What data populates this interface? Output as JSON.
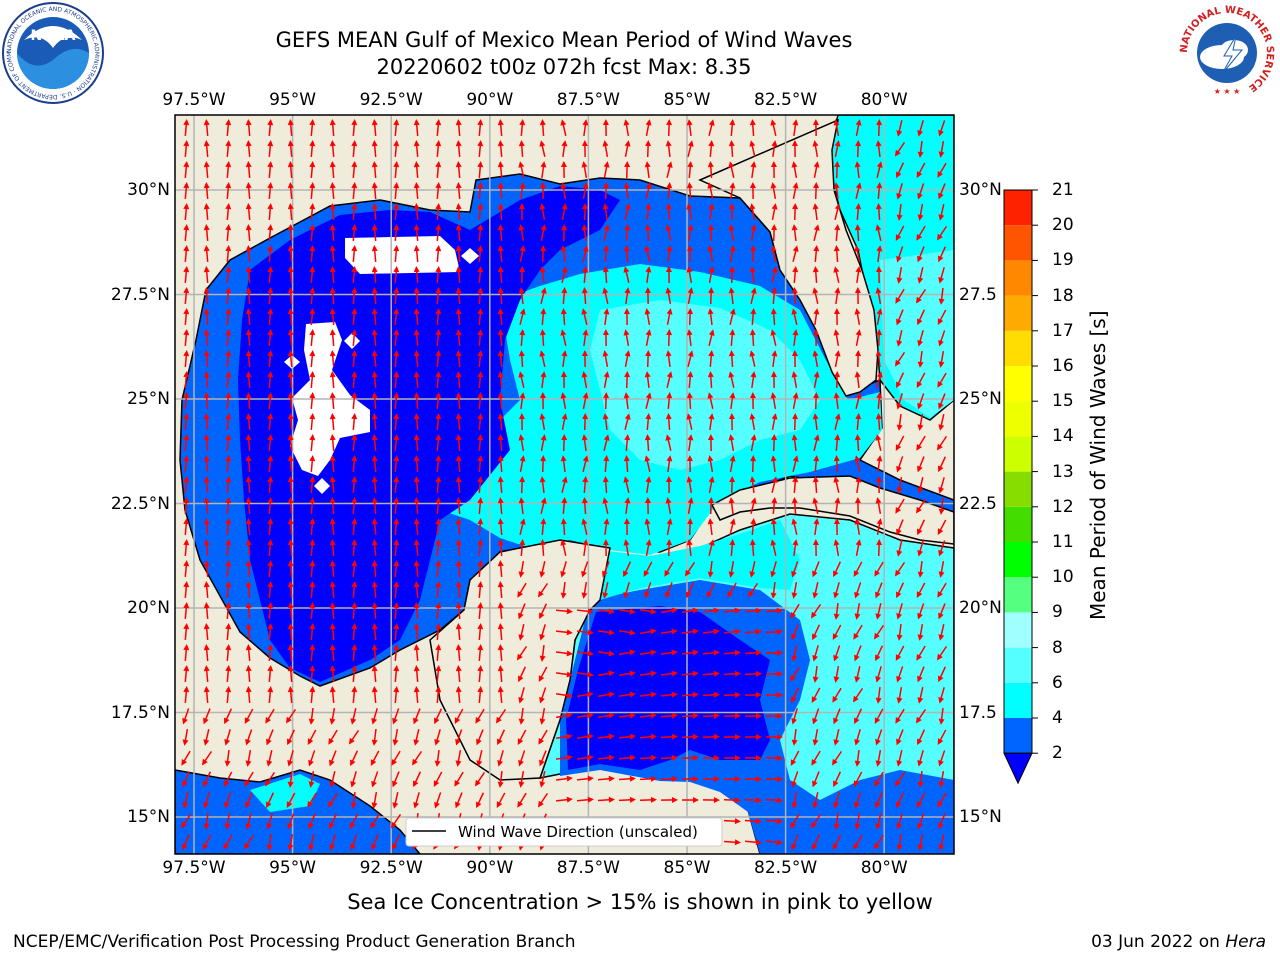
{
  "title": {
    "line1": "GEFS MEAN Gulf of Mexico Mean Period of Wind Waves",
    "line2": "20220602 t00z 072h fcst   Max: 8.35"
  },
  "logos": {
    "noaa_text": "NOAA",
    "noaa_ring": "NATIONAL OCEANIC AND ATMOSPHERIC ADMINISTRATION · U.S. DEPARTMENT OF COMMERCE",
    "nws_ring": "NATIONAL WEATHER SERVICE"
  },
  "map": {
    "lon_labels": [
      "97.5°W",
      "95°W",
      "92.5°W",
      "90°W",
      "87.5°W",
      "85°W",
      "82.5°W",
      "80°W"
    ],
    "lat_labels_left": [
      "30°N",
      "27.5°N",
      "25°N",
      "22.5°N",
      "20°N",
      "17.5°N",
      "15°N"
    ],
    "lat_labels_right": [
      "30°N",
      "27.5",
      "25°N",
      "22.5",
      "20°N",
      "17.5",
      "15°N"
    ],
    "legend_label": "Wind Wave Direction (unscaled)",
    "colors": {
      "land": "#efecdc",
      "coast": "#000000",
      "grid": "#b4b4b4",
      "arrow": "#ff0000",
      "bin_2_4": "#0064ff",
      "bin_under_2": "#0000ff",
      "bin_4_6": "#00ffff",
      "bin_6_8": "#55ffff",
      "no_data": "#ffffff"
    }
  },
  "colorbar": {
    "title": "Mean Period of Wind Waves [s]",
    "labels": [
      "2",
      "4",
      "6",
      "8",
      "9",
      "10",
      "11",
      "12",
      "13",
      "14",
      "15",
      "16",
      "17",
      "18",
      "19",
      "20",
      "21"
    ],
    "colors": [
      "#0064ff",
      "#00ffff",
      "#55ffff",
      "#a0ffff",
      "#55ff80",
      "#00ff00",
      "#44dd00",
      "#88dd00",
      "#ccff00",
      "#eeff00",
      "#ffff00",
      "#ffdd00",
      "#ffaa00",
      "#ff8800",
      "#ff5500",
      "#ff2200"
    ],
    "extend_color": "#0000ff"
  },
  "notes": {
    "ice": "Sea Ice Concentration > 15% is shown in pink to yellow",
    "footer_left": "NCEP/EMC/Verification Post Processing Product Generation Branch",
    "footer_date": "03 Jun 2022 on ",
    "footer_host": "Hera"
  }
}
